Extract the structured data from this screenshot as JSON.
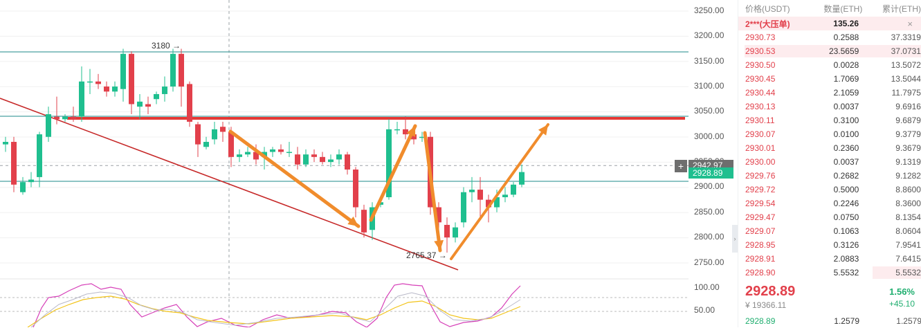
{
  "chart": {
    "annotations": {
      "high_label": "3180 →",
      "low_label": "2765.37 →"
    },
    "price_axis": [
      "3250.00",
      "3200.00",
      "3150.00",
      "3100.00",
      "3050.00",
      "3000.00",
      "2950.00",
      "2900.00",
      "2850.00",
      "2800.00",
      "2750.00"
    ],
    "crosshair_price": "2942.97",
    "crosshair_icon": "plus-icon",
    "current_price_tag": "2928.89",
    "indicator_axis": [
      "100.00",
      "50.00"
    ],
    "colors": {
      "up": "#1fbf8f",
      "down": "#e2404b",
      "resistance": "#e53935",
      "trend": "#c62828",
      "arrow": "#f08c2c",
      "hline": "#1b8a8a"
    }
  },
  "scroll_handle": "›",
  "orderbook": {
    "headers": [
      "价格(USDT)",
      "数量(ETH)",
      "累计(ETH)"
    ],
    "big_order": {
      "name": "2***(大压单)",
      "qty": "135.26",
      "close_icon": "×"
    },
    "asks": [
      {
        "price": "2930.73",
        "qty": "0.2588",
        "cum": "37.3319"
      },
      {
        "price": "2930.53",
        "qty": "23.5659",
        "cum": "37.0731"
      },
      {
        "price": "2930.50",
        "qty": "0.0028",
        "cum": "13.5072"
      },
      {
        "price": "2930.45",
        "qty": "1.7069",
        "cum": "13.5044"
      },
      {
        "price": "2930.44",
        "qty": "2.1059",
        "cum": "11.7975"
      },
      {
        "price": "2930.13",
        "qty": "0.0037",
        "cum": "9.6916"
      },
      {
        "price": "2930.11",
        "qty": "0.3100",
        "cum": "9.6879"
      },
      {
        "price": "2930.07",
        "qty": "0.0100",
        "cum": "9.3779"
      },
      {
        "price": "2930.01",
        "qty": "0.2360",
        "cum": "9.3679"
      },
      {
        "price": "2930.00",
        "qty": "0.0037",
        "cum": "9.1319"
      },
      {
        "price": "2929.76",
        "qty": "0.2682",
        "cum": "9.1282"
      },
      {
        "price": "2929.72",
        "qty": "0.5000",
        "cum": "8.8600"
      },
      {
        "price": "2929.54",
        "qty": "0.2246",
        "cum": "8.3600"
      },
      {
        "price": "2929.47",
        "qty": "0.0750",
        "cum": "8.1354"
      },
      {
        "price": "2929.07",
        "qty": "0.1063",
        "cum": "8.0604"
      },
      {
        "price": "2928.95",
        "qty": "0.3126",
        "cum": "7.9541"
      },
      {
        "price": "2928.91",
        "qty": "2.0883",
        "cum": "7.6415"
      },
      {
        "price": "2928.90",
        "qty": "5.5532",
        "cum": "5.5532"
      }
    ],
    "last": {
      "price": "2928.89",
      "cny": "¥ 19366.11",
      "pct": "1.56%",
      "change": "+45.10"
    },
    "bid": {
      "price": "2928.89",
      "qty": "1.2579",
      "cum": "1.2579"
    }
  }
}
